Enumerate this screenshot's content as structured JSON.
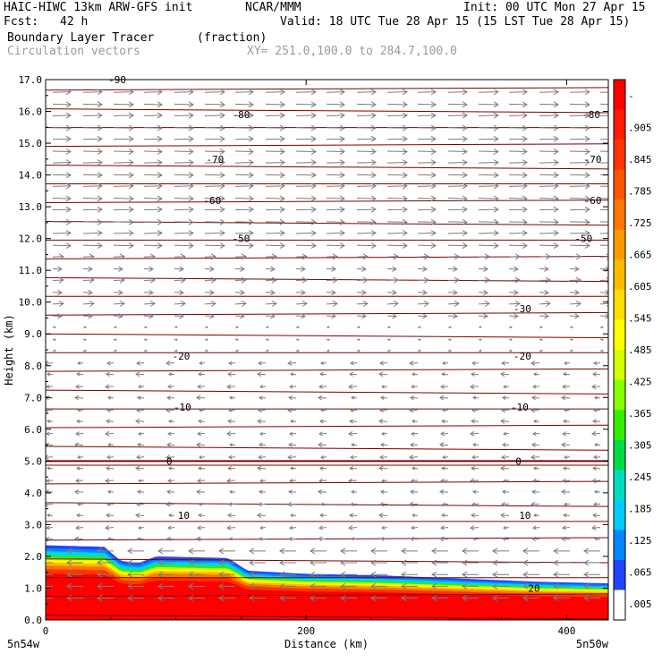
{
  "header": {
    "model": "HAIC-HIWC 13km ARW-GFS init",
    "org": "NCAR/MMM",
    "init": "Init: 00 UTC Mon 27 Apr 15",
    "fcst_label": "Fcst:",
    "fcst_value": "42 h",
    "valid": "Valid: 18 UTC Tue 28 Apr 15 (15 LST Tue 28 Apr 15)",
    "field": "Boundary Layer Tracer",
    "units": "(fraction)",
    "vectors": "Circulation vectors",
    "xy": "XY= 251.0,100.0 to 284.7,100.0"
  },
  "chart_data": {
    "type": "heatmap",
    "xlabel": "Distance (km)",
    "ylabel": "Height (km)",
    "xlim": [
      0,
      432
    ],
    "ylim": [
      0,
      17
    ],
    "x_ticks": [
      {
        "value": 0,
        "label": "0"
      },
      {
        "value": 200,
        "label": "200"
      },
      {
        "value": 400,
        "label": "400"
      }
    ],
    "y_ticks": [
      {
        "value": 0,
        "label": "0.0"
      },
      {
        "value": 1,
        "label": "1.0"
      },
      {
        "value": 2,
        "label": "2.0"
      },
      {
        "value": 3,
        "label": "3.0"
      },
      {
        "value": 4,
        "label": "4.0"
      },
      {
        "value": 5,
        "label": "5.0"
      },
      {
        "value": 6,
        "label": "6.0"
      },
      {
        "value": 7,
        "label": "7.0"
      },
      {
        "value": 8,
        "label": "8.0"
      },
      {
        "value": 9,
        "label": "9.0"
      },
      {
        "value": 10,
        "label": "10.0"
      },
      {
        "value": 11,
        "label": "11.0"
      },
      {
        "value": 12,
        "label": "12.0"
      },
      {
        "value": 13,
        "label": "13.0"
      },
      {
        "value": 14,
        "label": "14.0"
      },
      {
        "value": 15,
        "label": "15.0"
      },
      {
        "value": 16,
        "label": "16.0"
      },
      {
        "value": 17,
        "label": "17.0"
      }
    ],
    "endpoints": {
      "left": "5n54w",
      "right": "5n50w"
    },
    "boundary_layer_top_km": [
      {
        "x": 0,
        "y": 2.35
      },
      {
        "x": 45,
        "y": 2.3
      },
      {
        "x": 58,
        "y": 1.85
      },
      {
        "x": 72,
        "y": 1.8
      },
      {
        "x": 85,
        "y": 2.0
      },
      {
        "x": 140,
        "y": 1.95
      },
      {
        "x": 155,
        "y": 1.55
      },
      {
        "x": 200,
        "y": 1.45
      },
      {
        "x": 260,
        "y": 1.4
      },
      {
        "x": 320,
        "y": 1.3
      },
      {
        "x": 380,
        "y": 1.2
      },
      {
        "x": 432,
        "y": 1.15
      }
    ],
    "contour_labels": [
      {
        "x": 55,
        "y": 17.0,
        "label": "-90"
      },
      {
        "x": 150,
        "y": 15.9,
        "label": "-80"
      },
      {
        "x": 419,
        "y": 15.9,
        "label": "-80"
      },
      {
        "x": 130,
        "y": 14.5,
        "label": "-70"
      },
      {
        "x": 420,
        "y": 14.5,
        "label": "-70"
      },
      {
        "x": 128,
        "y": 13.2,
        "label": "-60"
      },
      {
        "x": 420,
        "y": 13.2,
        "label": "-60"
      },
      {
        "x": 150,
        "y": 12.0,
        "label": "-50"
      },
      {
        "x": 413,
        "y": 12.0,
        "label": "-50"
      },
      {
        "x": 366,
        "y": 9.8,
        "label": "-30"
      },
      {
        "x": 104,
        "y": 8.3,
        "label": "-20"
      },
      {
        "x": 366,
        "y": 8.3,
        "label": "-20"
      },
      {
        "x": 105,
        "y": 6.7,
        "label": "-10"
      },
      {
        "x": 364,
        "y": 6.7,
        "label": "-10"
      },
      {
        "x": 95,
        "y": 5.0,
        "label": "0"
      },
      {
        "x": 363,
        "y": 5.0,
        "label": "0"
      },
      {
        "x": 106,
        "y": 3.3,
        "label": "10"
      },
      {
        "x": 368,
        "y": 3.3,
        "label": "10"
      },
      {
        "x": 375,
        "y": 1.0,
        "label": "20"
      }
    ],
    "colorbar": {
      "labels": [
        "-",
        ".905",
        ".845",
        ".785",
        ".725",
        ".665",
        ".605",
        ".545",
        ".485",
        ".425",
        ".365",
        ".305",
        ".245",
        ".185",
        ".125",
        ".065",
        ".005"
      ],
      "colors": [
        "#ff0000",
        "#ff1a00",
        "#ff3300",
        "#ff5500",
        "#ff7700",
        "#ff9900",
        "#ffbb00",
        "#ffdd00",
        "#ffff00",
        "#d4ff00",
        "#88ff00",
        "#33ee00",
        "#00dd44",
        "#00ddbb",
        "#00ccff",
        "#0088ff",
        "#2244ff",
        "#ffffff"
      ]
    }
  }
}
